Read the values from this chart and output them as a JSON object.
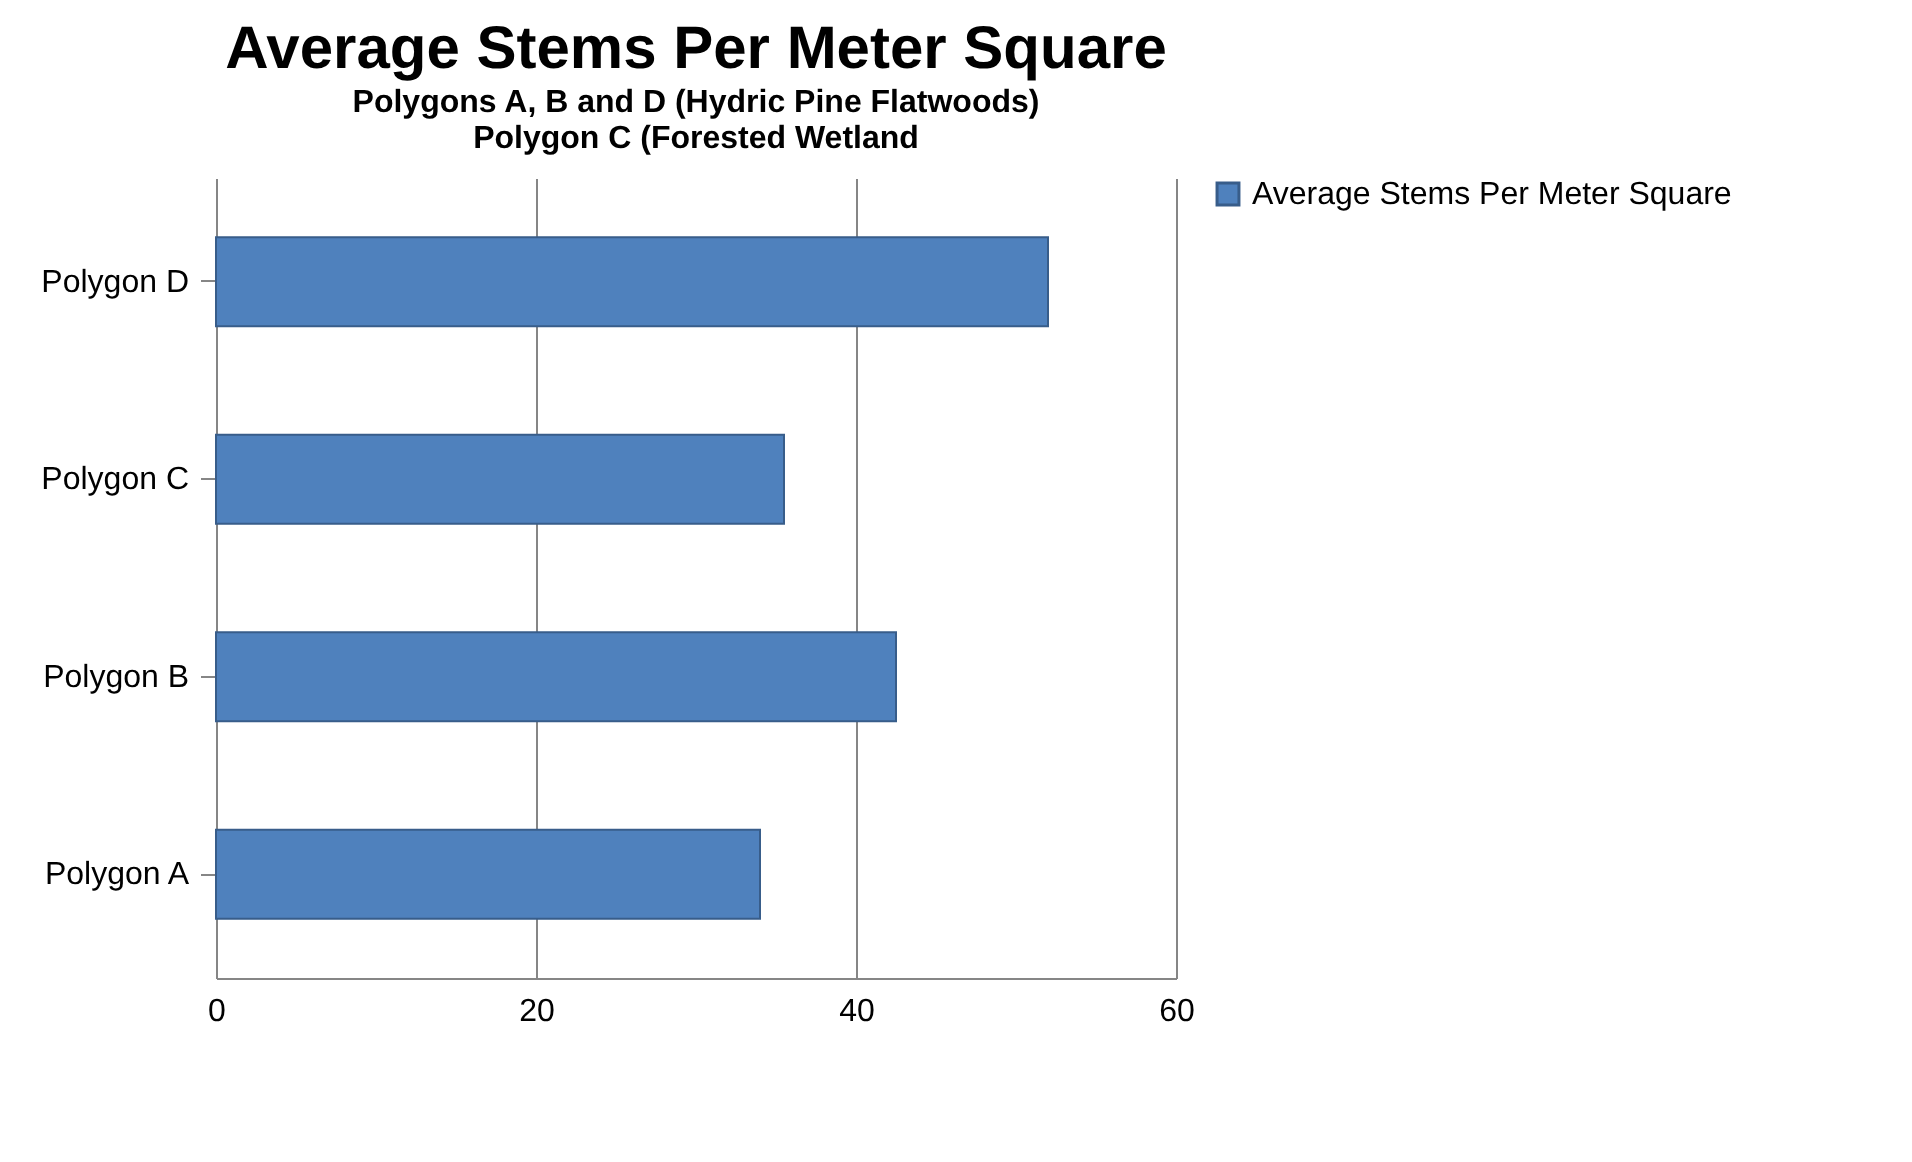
{
  "chart_data": {
    "type": "bar",
    "orientation": "horizontal",
    "title": "Average Stems Per Meter Square",
    "subtitle": "Polygons A, B and D (Hydric Pine Flatwoods)\nPolygon C (Forested Wetland",
    "categories": [
      "Polygon D",
      "Polygon C",
      "Polygon B",
      "Polygon A"
    ],
    "series": [
      {
        "name": "Average Stems Per Meter Square",
        "color": "#4f81bd",
        "values": [
          52,
          35.5,
          42.5,
          34
        ]
      }
    ],
    "xlim": [
      0,
      60
    ],
    "xticks": [
      0,
      20,
      40,
      60
    ],
    "grid": "x",
    "legend": "right"
  }
}
